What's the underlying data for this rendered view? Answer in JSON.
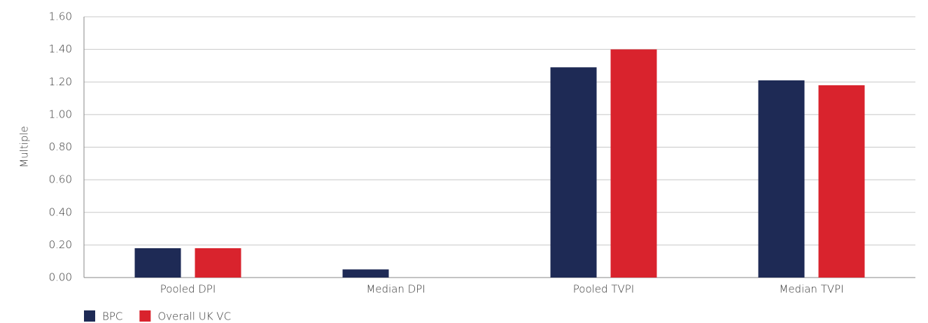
{
  "chart_data": {
    "type": "bar",
    "y_label": "Multiple",
    "categories": [
      "Pooled DPI",
      "Median DPI",
      "Pooled TVPI",
      "Median TVPI"
    ],
    "series": [
      {
        "name": "BPC",
        "color": "#1e2a55",
        "values": [
          0.18,
          0.05,
          1.29,
          1.21
        ]
      },
      {
        "name": "Overall UK VC",
        "color": "#d9232d",
        "values": [
          0.18,
          0,
          1.4,
          1.18
        ]
      }
    ],
    "ylim": [
      0,
      1.6
    ],
    "yticks": [
      {
        "value": 0,
        "label": "0.00"
      },
      {
        "value": 0.2,
        "label": "0.20"
      },
      {
        "value": 0.4,
        "label": "0.40"
      },
      {
        "value": 0.6,
        "label": "0.60"
      },
      {
        "value": 0.8,
        "label": "0.80"
      },
      {
        "value": 1.0,
        "label": "1.00"
      },
      {
        "value": 1.2,
        "label": "1.20"
      },
      {
        "value": 1.4,
        "label": "1.40"
      },
      {
        "value": 1.6,
        "label": "1.60"
      }
    ],
    "grid": true,
    "legend": "bottom-left"
  }
}
